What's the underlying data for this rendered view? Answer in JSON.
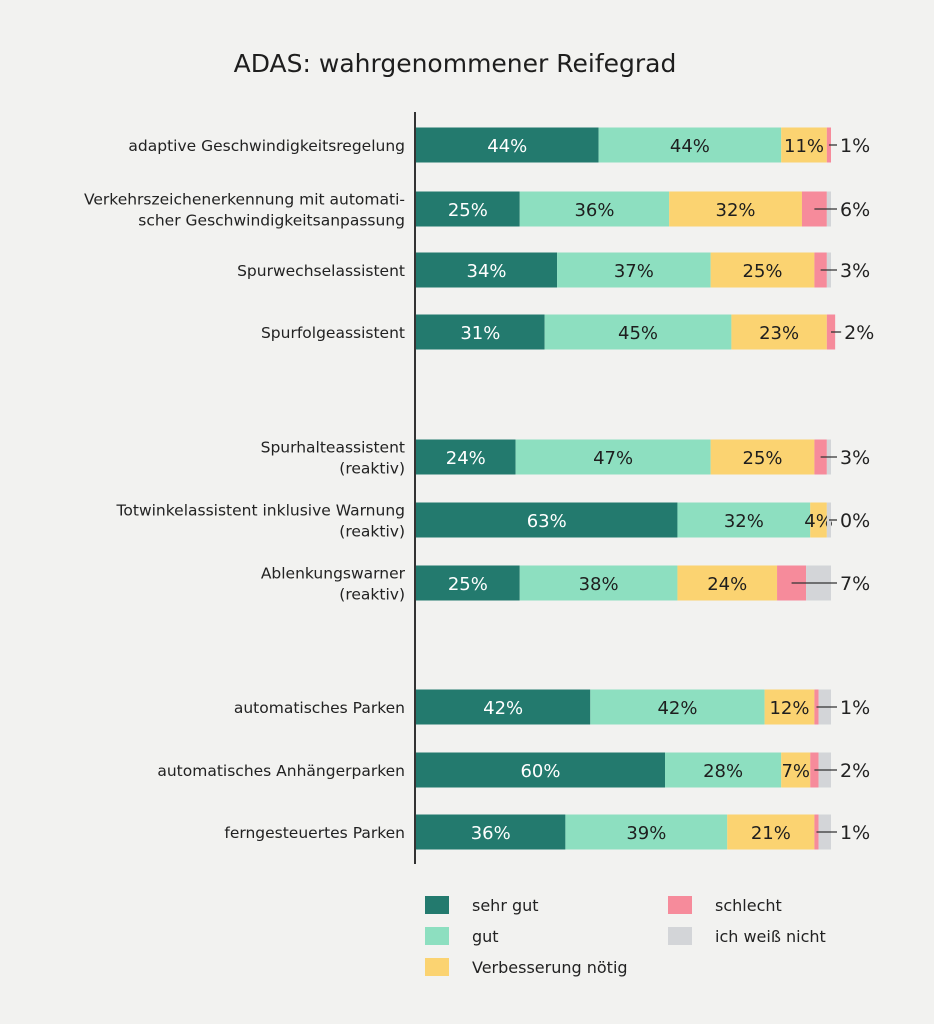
{
  "chart_data": {
    "type": "bar",
    "orientation": "horizontal-stacked",
    "title": "ADAS: wahrgenommener Reifegrad",
    "xlabel": "",
    "ylabel": "",
    "xlim": [
      0,
      100
    ],
    "unit": "%",
    "grid": false,
    "legend_position": "bottom",
    "categories": [
      [
        "adaptive Geschwindigkeitsregelung"
      ],
      [
        "Verkehrszeichenerkennung mit automati-",
        "scher Geschwindigkeitsanpassung"
      ],
      [
        "Spurwechselassistent"
      ],
      [
        "Spurfolgeassistent"
      ],
      [
        "Spurhalteassistent",
        "(reaktiv)"
      ],
      [
        "Totwinkelassistent inklusive Warnung",
        "(reaktiv)"
      ],
      [
        "Ablenkungswarner",
        "(reaktiv)"
      ],
      [
        "automatisches Parken"
      ],
      [
        "automatisches Anhängerparken"
      ],
      [
        "ferngesteuertes Parken"
      ]
    ],
    "groups": [
      [
        0,
        1,
        2,
        3
      ],
      [
        4,
        5,
        6
      ],
      [
        7,
        8,
        9
      ]
    ],
    "series": [
      {
        "name": "sehr gut",
        "color": "#237a6e",
        "label_color": "#ffffff",
        "values": [
          44,
          25,
          34,
          31,
          24,
          63,
          25,
          42,
          60,
          36
        ]
      },
      {
        "name": "gut",
        "color": "#8ddfc0",
        "label_color": "#1e1e1e",
        "values": [
          44,
          36,
          37,
          45,
          47,
          32,
          38,
          42,
          28,
          39
        ]
      },
      {
        "name": "Verbesserung nötig",
        "color": "#fbd371",
        "label_color": "#1e1e1e",
        "values": [
          11,
          32,
          25,
          23,
          25,
          4,
          24,
          12,
          7,
          21
        ]
      },
      {
        "name": "schlecht",
        "color": "#f68b9b",
        "label_color": "#1e1e1e",
        "values": [
          1,
          6,
          3,
          2,
          3,
          0,
          7,
          1,
          2,
          1
        ]
      },
      {
        "name": "ich weiß nicht",
        "color": "#d3d5d8",
        "label_color": "#1e1e1e",
        "values": [
          0,
          1,
          1,
          0,
          1,
          1,
          6,
          3,
          3,
          3
        ]
      }
    ],
    "inside_labels": [
      [
        "44%",
        "44%",
        "11%"
      ],
      [
        "25%",
        "36%",
        "32%"
      ],
      [
        "34%",
        "37%",
        "25%"
      ],
      [
        "31%",
        "45%",
        "23%"
      ],
      [
        "24%",
        "47%",
        "25%"
      ],
      [
        "63%",
        "32%",
        "4%"
      ],
      [
        "25%",
        "38%",
        "24%"
      ],
      [
        "42%",
        "42%",
        "12%"
      ],
      [
        "60%",
        "28%",
        "7%"
      ],
      [
        "36%",
        "39%",
        "21%"
      ]
    ],
    "external_labels": [
      "1%",
      "6%",
      "3%",
      "2%",
      "3%",
      "0%",
      "7%",
      "1%",
      "2%",
      "1%"
    ]
  }
}
